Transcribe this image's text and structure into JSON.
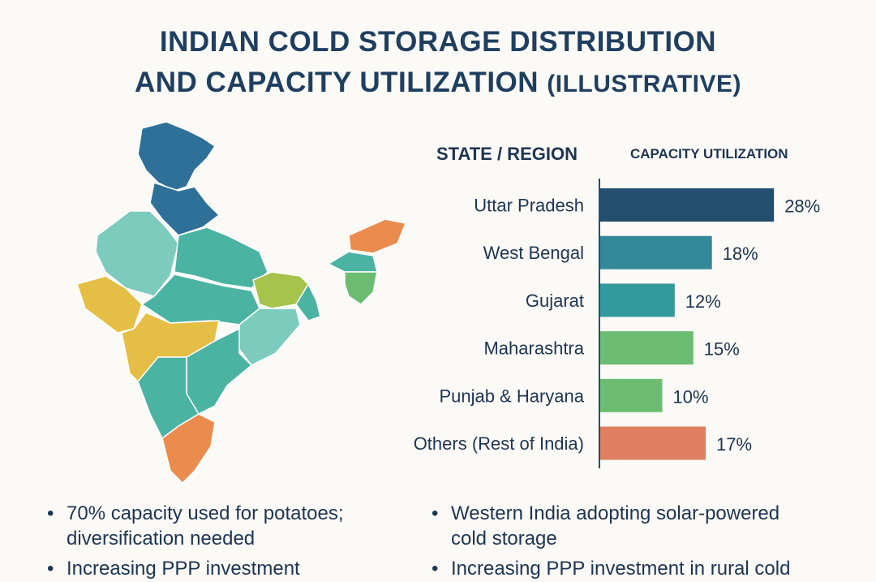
{
  "title_line1": "INDIAN COLD STORAGE DISTRIBUTION",
  "title_line2": "AND CAPACITY UTILIZATION",
  "title_suffix": "(ILLUSTRATIVE)",
  "colors": {
    "dark_blue": "#244e6e",
    "blue_teal": "#33889a",
    "teal": "#32999c",
    "green": "#6cbd72",
    "orange": "#e08062",
    "map_teal": "#4bb3a2",
    "map_light": "#7ccbbd",
    "map_yellow": "#e5bf45",
    "map_olive": "#a6c34c",
    "map_orange": "#ea8c4e",
    "map_blue": "#2f7099"
  },
  "chart_data": {
    "type": "bar",
    "orientation": "horizontal",
    "category_header": "STATE / REGION",
    "value_header": "CAPACITY UTILIZATION",
    "categories": [
      "Uttar Pradesh",
      "West Bengal",
      "Gujarat",
      "Maharashtra",
      "Punjab & Haryana",
      "Others (Rest of India)"
    ],
    "values": [
      28,
      18,
      12,
      15,
      10,
      17
    ],
    "labels": [
      "28%",
      "18%",
      "12%",
      "15%",
      "10%",
      "17%"
    ],
    "bar_colors": [
      "#244e6e",
      "#33889a",
      "#32999c",
      "#6cbd72",
      "#6cbd72",
      "#e08062"
    ]
  },
  "bullets": [
    {
      "text_line1": "70% capacity used for potatoes;",
      "text_line2": "diversification needed"
    },
    {
      "text_line1": "Western India adopting solar-powered",
      "text_line2": "cold storage"
    },
    {
      "text_line1": "Increasing PPP investment",
      "text_line2": ""
    },
    {
      "text_line1": "Increasing PPP investment in rural cold",
      "text_line2": ""
    }
  ],
  "bullet_symbol": "•"
}
